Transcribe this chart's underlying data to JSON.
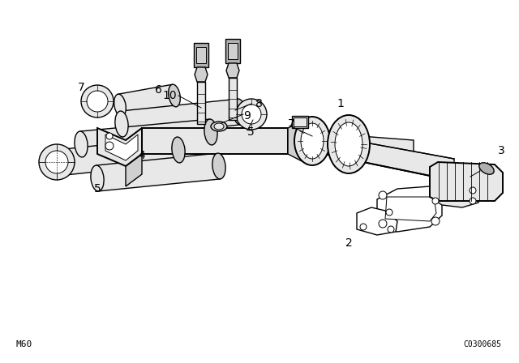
{
  "background_color": "#ffffff",
  "line_color": "#000000",
  "bottom_left_text": "M60",
  "bottom_right_text": "C0300685",
  "lw_main": 1.0,
  "lw_thin": 0.7,
  "lw_thick": 1.4
}
